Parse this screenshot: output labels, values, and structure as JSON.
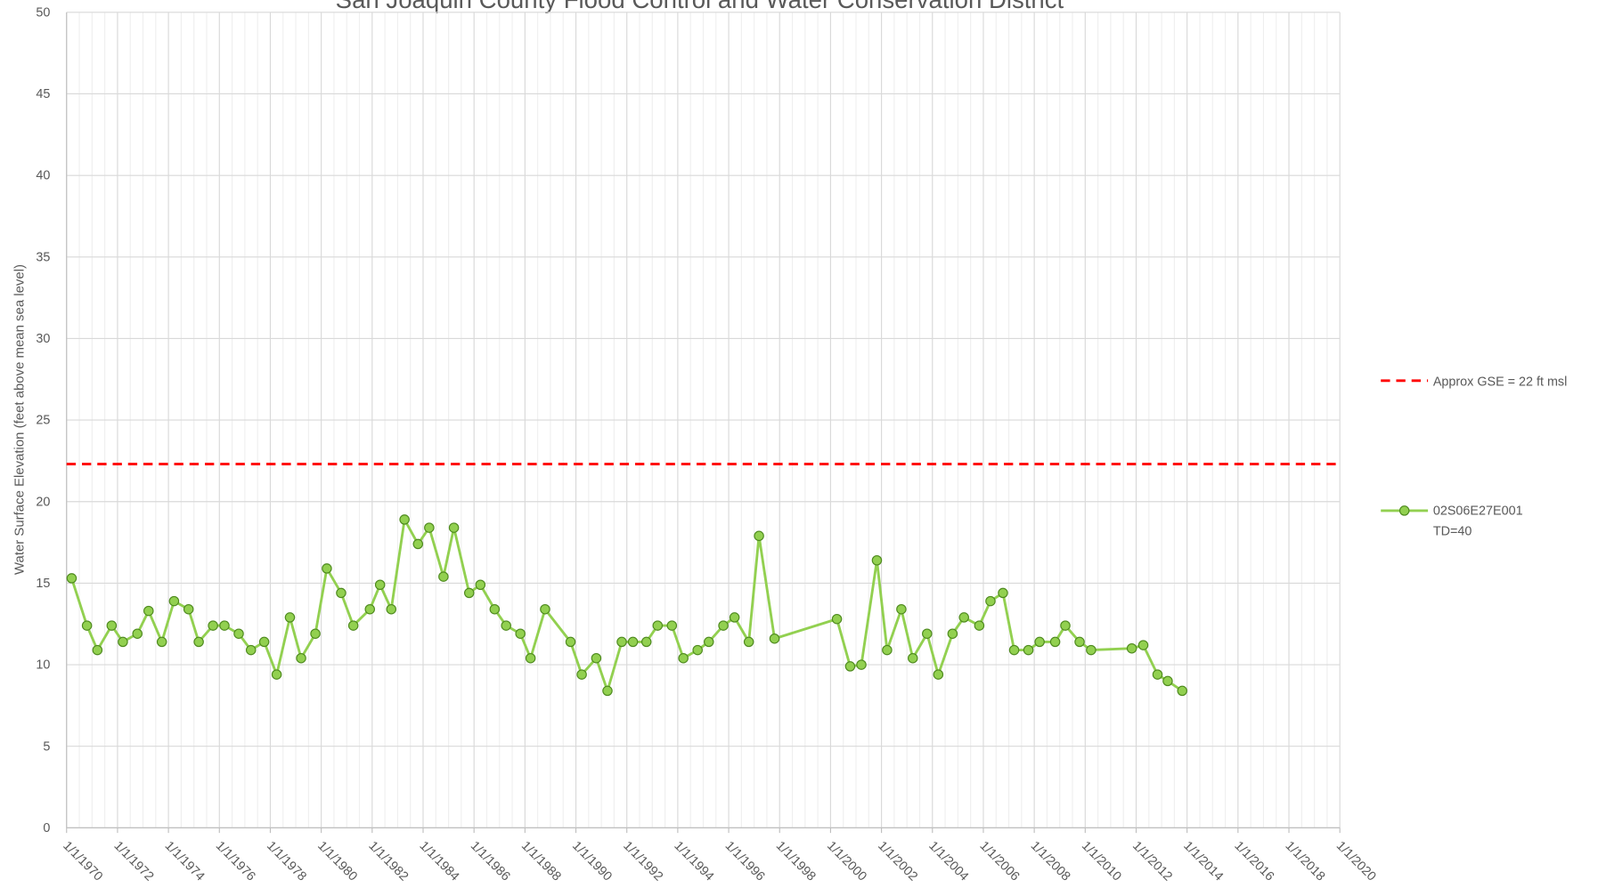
{
  "chart_data": {
    "type": "line",
    "title": "San Joaquin County Flood Control and Water Conservation District",
    "y_label": "Water Surface Elevation (feet above mean sea level)",
    "x": [
      1970.2,
      1970.8,
      1971.21,
      1971.77,
      1972.21,
      1972.78,
      1973.22,
      1973.74,
      1974.22,
      1974.79,
      1975.19,
      1975.75,
      1976.2,
      1976.76,
      1977.24,
      1977.76,
      1978.25,
      1978.77,
      1979.21,
      1979.77,
      1980.22,
      1980.78,
      1981.26,
      1981.91,
      1982.31,
      1982.75,
      1983.27,
      1983.8,
      1984.24,
      1984.8,
      1985.21,
      1985.81,
      1986.25,
      1986.81,
      1987.26,
      1987.82,
      1988.22,
      1988.79,
      1989.79,
      1990.23,
      1990.8,
      1991.24,
      1991.8,
      1992.24,
      1992.77,
      1993.21,
      1993.77,
      1994.22,
      1994.78,
      1995.22,
      1995.79,
      1996.23,
      1996.79,
      1997.19,
      1997.8,
      2000.25,
      2000.77,
      2001.21,
      2001.82,
      2002.22,
      2002.78,
      2003.23,
      2003.79,
      2004.23,
      2004.79,
      2005.24,
      2005.84,
      2006.28,
      2006.77,
      2007.21,
      2007.77,
      2008.21,
      2008.82,
      2009.22,
      2009.78,
      2010.23,
      2011.83,
      2012.28,
      2012.84,
      2013.24,
      2013.81
    ],
    "series": [
      {
        "name": "02S06E27E001\nTD=40",
        "color": "#92d050",
        "marker_edge": "#4e8a1e",
        "values": [
          15.3,
          12.4,
          10.9,
          12.4,
          11.4,
          11.9,
          13.3,
          11.4,
          13.9,
          13.4,
          11.4,
          12.4,
          12.4,
          11.9,
          10.9,
          11.4,
          9.4,
          12.9,
          10.4,
          11.9,
          15.9,
          14.4,
          12.4,
          13.4,
          14.9,
          13.4,
          18.9,
          17.4,
          18.4,
          15.4,
          18.4,
          14.4,
          14.9,
          13.4,
          12.4,
          11.9,
          10.4,
          13.4,
          11.4,
          9.4,
          10.4,
          8.4,
          11.4,
          11.4,
          11.4,
          12.4,
          12.4,
          10.4,
          10.9,
          11.4,
          12.4,
          12.9,
          11.4,
          17.9,
          11.6,
          12.8,
          9.9,
          10.0,
          16.4,
          10.9,
          13.4,
          10.4,
          11.9,
          9.4,
          11.9,
          12.9,
          12.4,
          13.9,
          14.4,
          10.9,
          10.9,
          11.4,
          11.4,
          12.4,
          11.4,
          10.9,
          11.0,
          11.2,
          9.4,
          9.0,
          8.4
        ]
      }
    ],
    "reference_line": {
      "name": "Approx GSE = 22 ft msl",
      "value": 22.3,
      "color": "#ff0000"
    },
    "xlim": [
      1970,
      2020
    ],
    "xticks": [
      {
        "value": 1970,
        "label": "1/1/1970"
      },
      {
        "value": 1972,
        "label": "1/1/1972"
      },
      {
        "value": 1974,
        "label": "1/1/1974"
      },
      {
        "value": 1976,
        "label": "1/1/1976"
      },
      {
        "value": 1978,
        "label": "1/1/1978"
      },
      {
        "value": 1980,
        "label": "1/1/1980"
      },
      {
        "value": 1982,
        "label": "1/1/1982"
      },
      {
        "value": 1984,
        "label": "1/1/1984"
      },
      {
        "value": 1986,
        "label": "1/1/1986"
      },
      {
        "value": 1988,
        "label": "1/1/1988"
      },
      {
        "value": 1990,
        "label": "1/1/1990"
      },
      {
        "value": 1992,
        "label": "1/1/1992"
      },
      {
        "value": 1994,
        "label": "1/1/1994"
      },
      {
        "value": 1996,
        "label": "1/1/1996"
      },
      {
        "value": 1998,
        "label": "1/1/1998"
      },
      {
        "value": 2000,
        "label": "1/1/2000"
      },
      {
        "value": 2002,
        "label": "1/1/2002"
      },
      {
        "value": 2004,
        "label": "1/1/2004"
      },
      {
        "value": 2006,
        "label": "1/1/2006"
      },
      {
        "value": 2008,
        "label": "1/1/2008"
      },
      {
        "value": 2010,
        "label": "1/1/2010"
      },
      {
        "value": 2012,
        "label": "1/1/2012"
      },
      {
        "value": 2014,
        "label": "1/1/2014"
      },
      {
        "value": 2016,
        "label": "1/1/2016"
      },
      {
        "value": 2018,
        "label": "1/1/2018"
      },
      {
        "value": 2020,
        "label": "1/1/2020"
      }
    ],
    "ylim": [
      0,
      50
    ],
    "yticks": [
      0,
      5,
      10,
      15,
      20,
      25,
      30,
      35,
      40,
      45,
      50
    ],
    "grid": true
  }
}
